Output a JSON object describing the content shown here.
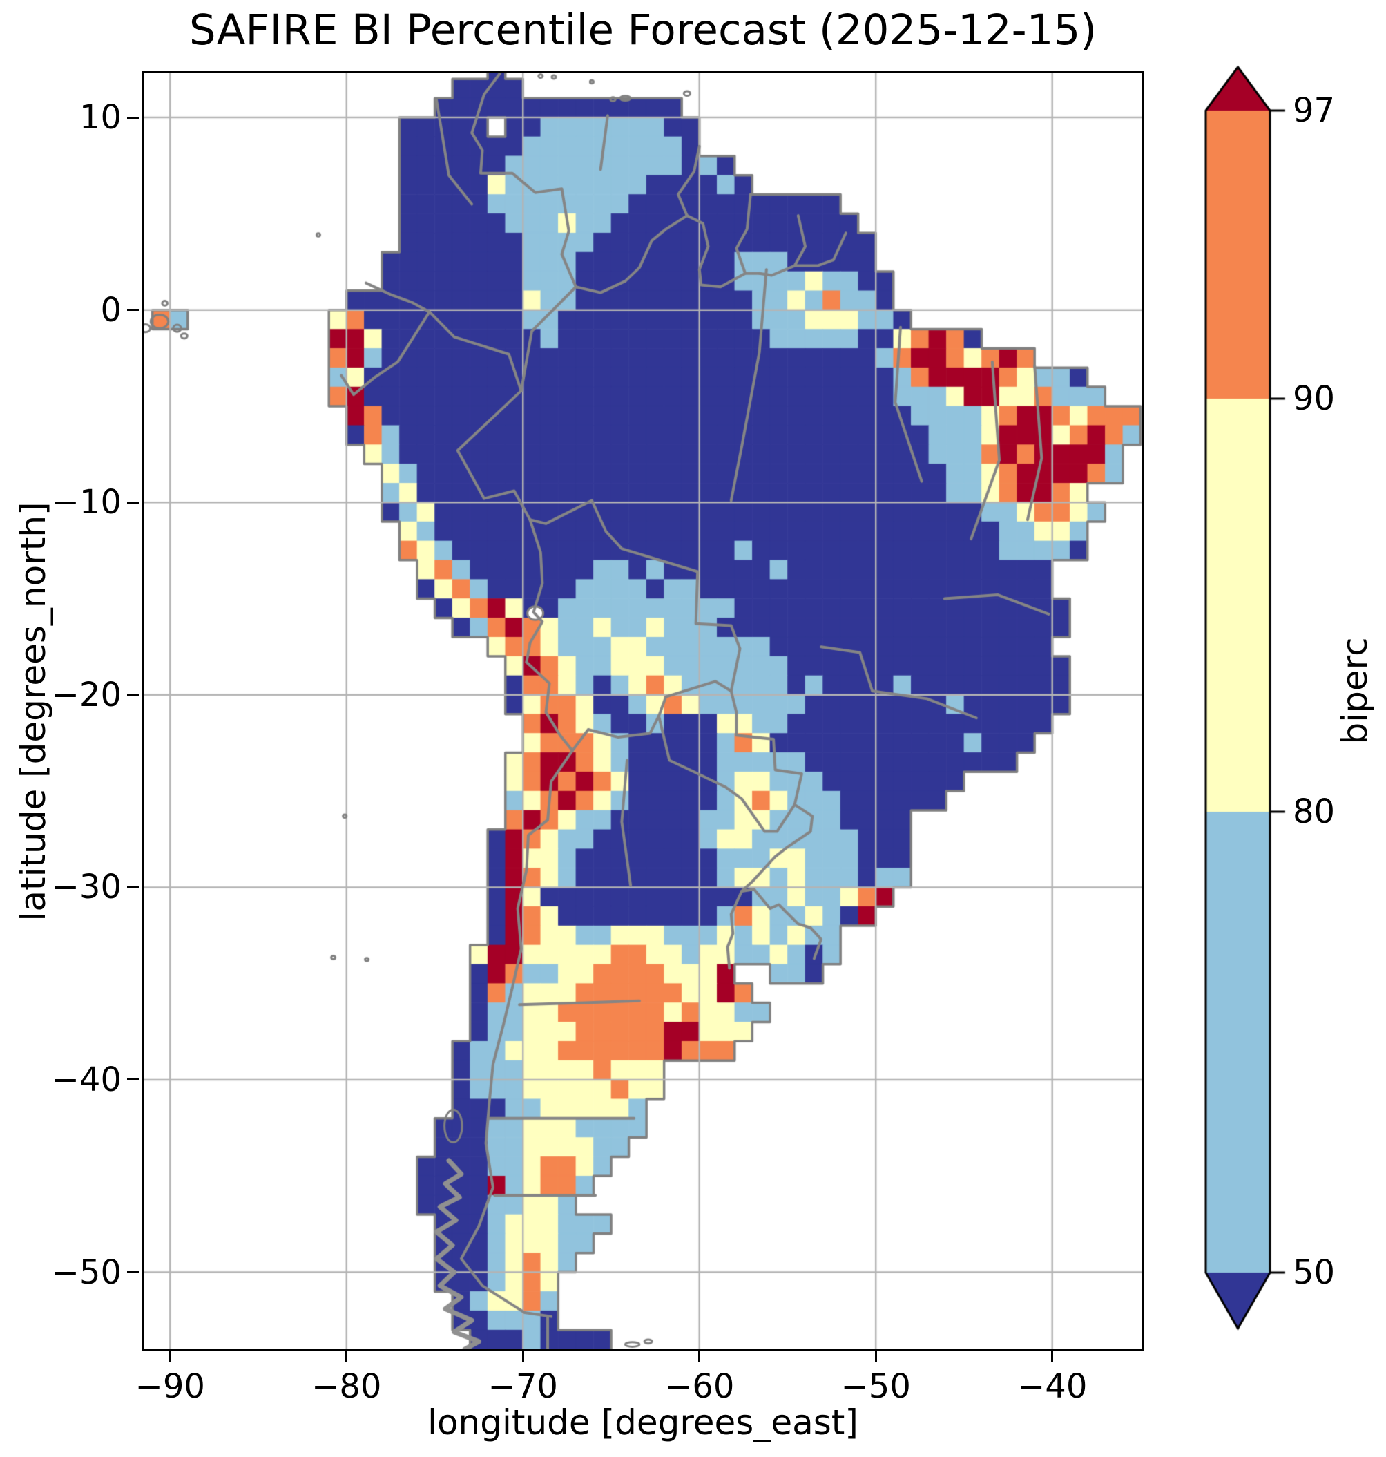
{
  "title": "SAFIRE BI Percentile Forecast (2025-12-15)",
  "axes": {
    "xlabel": "longitude [degrees_east]",
    "ylabel": "latitude [degrees_north]",
    "x_ticks": [
      -90,
      -80,
      -70,
      -60,
      -50,
      -40
    ],
    "y_ticks": [
      10,
      0,
      -10,
      -20,
      -30,
      -40,
      -50
    ]
  },
  "colorbar": {
    "label": "biperc",
    "tick_labels": [
      "97",
      "90",
      "80",
      "50"
    ],
    "levels": [
      50,
      80,
      90,
      97
    ],
    "extend": "both",
    "segment_colors_top_to_bottom": [
      "#a50026",
      "#f5854e",
      "#ffffc0",
      "#91c3dd",
      "#313695"
    ]
  },
  "chart_data": {
    "type": "heatmap",
    "title": "SAFIRE BI Percentile Forecast (2025-12-15)",
    "xlabel": "longitude [degrees_east]",
    "ylabel": "latitude [degrees_north]",
    "xlim": [
      -91.5,
      -34.9
    ],
    "ylim": [
      -54.0,
      12.3
    ],
    "grid_on": true,
    "legend_position": "right-colorbar",
    "value_bins": {
      "1": "below 50",
      "2": "50-80",
      "3": "80-90",
      "4": "90-97",
      "5": "above 97",
      ".": "ocean / no data"
    },
    "colors": {
      "lt50": "#313695",
      "p50_80": "#91c3dd",
      "p80_90": "#ffffc0",
      "p90_97": "#f5854e",
      "gt97": "#a50026",
      "gridline": "#b4b4b4",
      "border": "#858585",
      "coast": "#808080",
      "ocean": "#ffffff"
    },
    "raster": {
      "origin_lon": -92,
      "origin_lat": 13,
      "cell_deg": 1,
      "ncols": 57,
      "nrows": 67,
      "rows": [
        "....................1....................................",
        "..................1111...................................",
        ".................11111111111111..........................",
        "...............11111.11222222211.........................",
        "...............11111112222222221.........................",
        "...............1111112222222222121.......................",
        "...............11111322222222111121......................",
        "...............1111122222222111111111111.................",
        "...............11111122232211111111111111................",
        "...............111111122221111111111111111...............",
        "..............1111111122211111111122211111...............",
        "..............11111111222111111111222232211..............",
        "............1111111111322111111111122324221..............",
        ".42........341111111112211111111111222333221.............",
        "...........5531111111112111111111111222221134541.........",
        "...........4521111111111111111111111111111245543454......",
        "...........2311111111111111111111111111111124555543221...",
        "...........45111111111111111111111111111111222355334222.",
        "............541111111111111111111111111111112222345543444",
        "............142111111111111111111111111111111222355534542",
        ".............3211111111111111111111111111111122245455552",
        "..............321111111111111111111111111111112234555542",
        "..............2311111111111111111111111111111122345543.",
        "..............12311111111111111111111111111111112234432.",
        "...............321111111111111111111111111111111122332..",
        "...............432111111111111111121111111111111122221..",
        "................342111111122121111112111111111111111...",
        "................134211111222212211111111111111111111...",
        ".................134531122222222221111111111111111111...",
        "..................12454322322322211111111111111111111...",
        "....................34432223322222221111111111111111...",
        ".....................35432233322222221111111111111111....",
        ".....................14432123432222221211112111111111....",
        ".....................13443112343222222111111112111111.....",
        "......................454321121113322111111111111111.....",
        "......................34443211111243111111111112111......",
        ".....................34554321111122222111111111111........",
        ".....................34545431111123322211111111...........",
        ".....................23454321111123432221111 1............",
        ".....................45432211111223322221111.............",
        "....................154322111111233222222111.............",
        "....................153321111111122233222111.............",
        "....................154321111111123323222 22..............",
        "....................15311111111111122322345...............",
        "....................15431111111112432232 5................",
        "....................15433223332223232322.................",
        "...................355333334433233223212.................",
        "...................154223344443335..221..................",
        "...................1423334444443354......................",
        "...................12233444444343322.....................",
        "...................1223334444455333......................",
        "..................1223334444445444.......................",
        "..................122233334333...........................",
        "..................122233333433...........................",
        "..................11122333332............................",
        ".................111223332222............................",
        ".................11122333322.............................",
        "................11112234432..............................",
        "................1111523442...............................",
        "................111122332................................",
        ".................1112333222..............................",
        ".................111233322...............................",
        ".................11123432................................",
        ".................1112343.................................",
        "..................123342.................................",
        "..................112221.................................",
        "...................11121111..............................."
      ]
    },
    "borders": [
      [
        [
          -71.3,
          12.3
        ],
        [
          -72.2,
          11.2
        ],
        [
          -72.9,
          9.2
        ],
        [
          -72.3,
          8.3
        ],
        [
          -72.4,
          7.1
        ],
        [
          -70.6,
          7.1
        ],
        [
          -69.3,
          6.1
        ],
        [
          -67.8,
          6.3
        ],
        [
          -67.4,
          4.1
        ],
        [
          -67.8,
          2.9
        ],
        [
          -67,
          1.2
        ]
      ],
      [
        [
          -67,
          1.2
        ],
        [
          -65.6,
          0.9
        ],
        [
          -64.2,
          1.5
        ],
        [
          -63.4,
          2.2
        ],
        [
          -62.7,
          3.6
        ],
        [
          -61.9,
          4.2
        ],
        [
          -60.7,
          4.9
        ]
      ],
      [
        [
          -60.7,
          4.9
        ],
        [
          -61.2,
          6
        ],
        [
          -60.3,
          7.2
        ],
        [
          -60,
          8.5
        ]
      ],
      [
        [
          -60.7,
          4.9
        ],
        [
          -59.8,
          4.5
        ],
        [
          -59.5,
          3.3
        ],
        [
          -60,
          2.1
        ],
        [
          -59.9,
          1.3
        ],
        [
          -58.8,
          1.2
        ],
        [
          -57.4,
          1.9
        ],
        [
          -56.6,
          1.9
        ]
      ],
      [
        [
          -57.4,
          1.9
        ],
        [
          -57.9,
          3.2
        ],
        [
          -57.3,
          4.2
        ],
        [
          -57.1,
          6
        ]
      ],
      [
        [
          -56.6,
          1.9
        ],
        [
          -55.9,
          1.8
        ],
        [
          -54.6,
          2.3
        ],
        [
          -54,
          3.3
        ],
        [
          -54.4,
          4.9
        ]
      ],
      [
        [
          -54.6,
          2.3
        ],
        [
          -53.3,
          2.3
        ],
        [
          -52.4,
          2.6
        ],
        [
          -51.7,
          4
        ]
      ],
      [
        [
          -78.9,
          1.4
        ],
        [
          -77.5,
          0.8
        ],
        [
          -76.3,
          0.4
        ],
        [
          -75.3,
          -0.1
        ]
      ],
      [
        [
          -80.3,
          -3.4
        ],
        [
          -79.6,
          -4.4
        ],
        [
          -78.4,
          -3.5
        ],
        [
          -77.1,
          -2.7
        ],
        [
          -75.3,
          -0.1
        ]
      ],
      [
        [
          -67,
          1.2
        ],
        [
          -69.5,
          -1.1
        ],
        [
          -70.1,
          -4.2
        ]
      ],
      [
        [
          -75.3,
          -0.1
        ],
        [
          -73.9,
          -1.4
        ],
        [
          -70.8,
          -2.3
        ],
        [
          -70.1,
          -4.2
        ]
      ],
      [
        [
          -70.1,
          -4.2
        ],
        [
          -73.7,
          -7.3
        ],
        [
          -72.2,
          -9.8
        ],
        [
          -70.5,
          -9.4
        ],
        [
          -69.6,
          -10.9
        ],
        [
          -68.7,
          -11.1
        ],
        [
          -66.1,
          -9.9
        ],
        [
          -65.3,
          -11.5
        ],
        [
          -64.4,
          -12.4
        ],
        [
          -60.1,
          -13.6
        ],
        [
          -60.2,
          -16.3
        ],
        [
          -58.2,
          -16.4
        ],
        [
          -57.7,
          -17.6
        ],
        [
          -58.2,
          -19.8
        ]
      ],
      [
        [
          -69.6,
          -10.9
        ],
        [
          -69,
          -12.6
        ],
        [
          -68.9,
          -14.2
        ],
        [
          -69.4,
          -15.7
        ],
        [
          -68.9,
          -16.2
        ],
        [
          -69.6,
          -17.3
        ],
        [
          -69.8,
          -18.3
        ]
      ],
      [
        [
          -69.8,
          -18.3
        ],
        [
          -68.5,
          -19.4
        ],
        [
          -68.7,
          -20.9
        ],
        [
          -67.9,
          -22.1
        ],
        [
          -67.2,
          -22.9
        ]
      ],
      [
        [
          -67.2,
          -22.9
        ],
        [
          -66.3,
          -21.8
        ],
        [
          -64.6,
          -22.2
        ],
        [
          -62.8,
          -22
        ],
        [
          -62.3,
          -21.1
        ]
      ],
      [
        [
          -62.3,
          -21.1
        ],
        [
          -61.9,
          -20.1
        ],
        [
          -59.1,
          -19.3
        ],
        [
          -58.2,
          -19.8
        ]
      ],
      [
        [
          -62.3,
          -21.1
        ],
        [
          -61.7,
          -23.4
        ],
        [
          -60.3,
          -24
        ],
        [
          -58.5,
          -24.8
        ],
        [
          -57.6,
          -25.4
        ],
        [
          -56.3,
          -27.1
        ],
        [
          -55.6,
          -27.1
        ],
        [
          -54.6,
          -25.7
        ]
      ],
      [
        [
          -58.2,
          -19.8
        ],
        [
          -57.9,
          -20.9
        ],
        [
          -57.9,
          -22.1
        ],
        [
          -55.8,
          -22.3
        ],
        [
          -55.7,
          -23.9
        ],
        [
          -54.2,
          -24.1
        ],
        [
          -54.6,
          -25.7
        ]
      ],
      [
        [
          -54.6,
          -25.7
        ],
        [
          -53.6,
          -26.3
        ],
        [
          -53.7,
          -27.1
        ],
        [
          -55,
          -27.9
        ],
        [
          -55.7,
          -28.4
        ],
        [
          -57,
          -29.7
        ],
        [
          -57.6,
          -30.2
        ]
      ],
      [
        [
          -57.6,
          -30.2
        ],
        [
          -56.9,
          -30.1
        ],
        [
          -56,
          -31.1
        ],
        [
          -55.5,
          -30.9
        ],
        [
          -54.4,
          -31.9
        ],
        [
          -53.7,
          -32.1
        ],
        [
          -53.1,
          -32.7
        ],
        [
          -53.5,
          -33.7
        ]
      ],
      [
        [
          -57.6,
          -30.2
        ],
        [
          -58.2,
          -31.4
        ],
        [
          -58.1,
          -32.4
        ],
        [
          -58.4,
          -33.1
        ],
        [
          -58.3,
          -34.2
        ]
      ],
      [
        [
          -67.2,
          -22.9
        ],
        [
          -68.4,
          -24.5
        ],
        [
          -68.6,
          -26.5
        ],
        [
          -69.7,
          -27.3
        ],
        [
          -69.8,
          -29.1
        ],
        [
          -70.3,
          -31.1
        ],
        [
          -70.1,
          -33.2
        ],
        [
          -70.6,
          -35.2
        ],
        [
          -71.1,
          -37.1
        ],
        [
          -71.7,
          -39.2
        ],
        [
          -71.9,
          -41.1
        ],
        [
          -72.1,
          -43.3
        ],
        [
          -71.7,
          -45.6
        ],
        [
          -72.5,
          -47.6
        ],
        [
          -73.5,
          -49.3
        ],
        [
          -72.3,
          -50.7
        ],
        [
          -69.9,
          -52.1
        ],
        [
          -68.4,
          -52.3
        ]
      ],
      [
        [
          -68.6,
          -52.3
        ],
        [
          -68.6,
          -54
        ]
      ],
      [
        [
          -56.2,
          2.1
        ],
        [
          -56.6,
          -2.2
        ],
        [
          -57.6,
          -7.1
        ],
        [
          -58.2,
          -9.9
        ]
      ],
      [
        [
          -48.6,
          -0.9
        ],
        [
          -48.9,
          -4.8
        ],
        [
          -47.4,
          -8.9
        ]
      ],
      [
        [
          -43.4,
          -2.7
        ],
        [
          -43,
          -7.8
        ],
        [
          -44.6,
          -11.9
        ]
      ],
      [
        [
          -41,
          -2.9
        ],
        [
          -40.6,
          -7.7
        ],
        [
          -41.4,
          -10.9
        ]
      ],
      [
        [
          -46.1,
          -15
        ],
        [
          -43.1,
          -14.8
        ],
        [
          -40.2,
          -15.8
        ]
      ],
      [
        [
          -53.1,
          -17.5
        ],
        [
          -50.9,
          -17.8
        ],
        [
          -50.2,
          -19.8
        ],
        [
          -47.1,
          -20.2
        ],
        [
          -44.3,
          -21.2
        ]
      ],
      [
        [
          -64.1,
          -23.4
        ],
        [
          -64.4,
          -26.6
        ],
        [
          -63.9,
          -29.9
        ]
      ],
      [
        [
          -70.2,
          -36.1
        ],
        [
          -66.5,
          -36
        ],
        [
          -63.4,
          -35.9
        ]
      ],
      [
        [
          -71.9,
          -42
        ],
        [
          -63.7,
          -42
        ]
      ],
      [
        [
          -71.6,
          -46
        ],
        [
          -65.9,
          -46
        ]
      ],
      [
        [
          -74.9,
          10.9
        ],
        [
          -74.2,
          7
        ],
        [
          -72.9,
          5.5
        ]
      ],
      [
        [
          -65.2,
          10.1
        ],
        [
          -65.6,
          7.3
        ]
      ]
    ],
    "islands": [
      [
        -90.6,
        -0.6,
        0.5,
        0.35
      ],
      [
        -91.4,
        -0.95,
        0.28,
        0.2
      ],
      [
        -89.6,
        -0.95,
        0.22,
        0.18
      ],
      [
        -90.3,
        0.35,
        0.15,
        0.12
      ],
      [
        -91.7,
        0.05,
        0.15,
        0.12
      ],
      [
        -89.2,
        -1.35,
        0.18,
        0.13
      ],
      [
        -81.6,
        3.9,
        0.1,
        0.08
      ],
      [
        -70.05,
        12.5,
        0.15,
        0.1
      ],
      [
        -69,
        12.15,
        0.12,
        0.09
      ],
      [
        -68.25,
        12.1,
        0.12,
        0.09
      ],
      [
        -66.1,
        11.85,
        0.1,
        0.08
      ],
      [
        -64.2,
        11,
        0.3,
        0.12
      ],
      [
        -64.9,
        10.95,
        0.15,
        0.1
      ],
      [
        -60.7,
        11.25,
        0.18,
        0.12
      ],
      [
        -80.1,
        -26.3,
        0.1,
        0.08
      ],
      [
        -80.75,
        -33.65,
        0.12,
        0.09
      ],
      [
        -78.85,
        -33.75,
        0.1,
        0.08
      ],
      [
        -73.95,
        -42.4,
        0.5,
        0.85
      ],
      [
        -63.8,
        -53.75,
        0.4,
        0.12
      ],
      [
        -62.9,
        -53.6,
        0.22,
        0.1
      ]
    ],
    "lakes": [
      [
        -69.3,
        -15.75,
        0.45,
        0.35
      ]
    ],
    "archipelago": [
      [
        [
          -74.2,
          -44.2
        ],
        [
          -73.5,
          -44.9
        ],
        [
          -74.4,
          -45.4
        ],
        [
          -73.6,
          -46.1
        ],
        [
          -74.7,
          -46.6
        ],
        [
          -73.8,
          -47.3
        ],
        [
          -74.9,
          -47.9
        ],
        [
          -74,
          -48.6
        ],
        [
          -74.9,
          -49.3
        ],
        [
          -73.9,
          -50
        ],
        [
          -74.7,
          -50.7
        ],
        [
          -73.5,
          -51.3
        ],
        [
          -74.4,
          -51.9
        ],
        [
          -72.9,
          -52.5
        ],
        [
          -73.9,
          -53.1
        ],
        [
          -72.5,
          -53.6
        ],
        [
          -73.3,
          -54
        ]
      ]
    ]
  }
}
